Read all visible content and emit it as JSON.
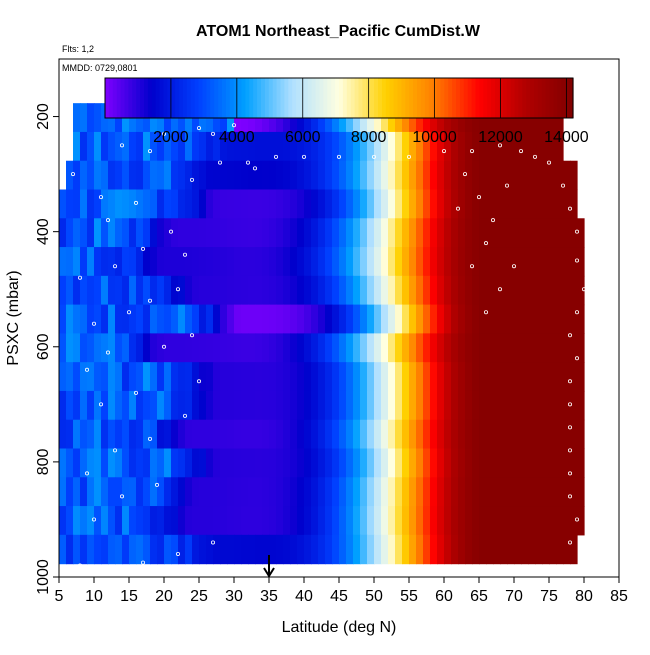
{
  "chart_data": {
    "type": "heatmap",
    "title": "ATOM1 Northeast_Pacific CumDist.W",
    "subtitle_left": "Flts: 1,2",
    "annotation": "MMDD: 0729,0801",
    "xlabel": "Latitude (deg N)",
    "ylabel": "PSXC (mbar)",
    "xlim": [
      5,
      85
    ],
    "ylim": [
      1000,
      100
    ],
    "y_reversed": true,
    "x_ticks": [
      "5",
      "10",
      "15",
      "20",
      "25",
      "30",
      "35",
      "40",
      "45",
      "50",
      "55",
      "60",
      "65",
      "70",
      "75",
      "80",
      "85"
    ],
    "y_ticks": [
      "200",
      "400",
      "600",
      "800",
      "1000"
    ],
    "colorbar": {
      "min": 0,
      "max": 14200,
      "ticks": [
        "2000",
        "4000",
        "6000",
        "8000",
        "10000",
        "12000",
        "14000"
      ],
      "colors": [
        "#7f00ff",
        "#0000cc",
        "#0040ff",
        "#00a0ff",
        "#b0e0ff",
        "#ffffe0",
        "#ffd000",
        "#ff8000",
        "#ff0000",
        "#b00000",
        "#800000"
      ]
    },
    "marker": {
      "latitude": 35,
      "label": "arrow"
    },
    "levels_mbar": [
      200,
      250,
      300,
      350,
      400,
      450,
      500,
      550,
      600,
      650,
      700,
      750,
      800,
      850,
      900,
      950
    ],
    "rows": [
      {
        "p": 200,
        "lat_min": 7,
        "lat_max": 77,
        "cold_lat": 0,
        "cold_val": 0
      },
      {
        "p": 250,
        "lat_min": 7,
        "lat_max": 77,
        "cold_lat": 30,
        "cold_val": 1800
      },
      {
        "p": 300,
        "lat_min": 6,
        "lat_max": 79,
        "cold_lat": 27,
        "cold_val": 1500
      },
      {
        "p": 350,
        "lat_min": 5,
        "lat_max": 79,
        "cold_lat": 28,
        "cold_val": 800
      },
      {
        "p": 400,
        "lat_min": 5,
        "lat_max": 80,
        "cold_lat": 22,
        "cold_val": 900
      },
      {
        "p": 450,
        "lat_min": 5,
        "lat_max": 80,
        "cold_lat": 20,
        "cold_val": 1100
      },
      {
        "p": 500,
        "lat_min": 5,
        "lat_max": 80,
        "cold_lat": 25,
        "cold_val": 1000
      },
      {
        "p": 550,
        "lat_min": 5,
        "lat_max": 80,
        "cold_lat": 31,
        "cold_val": 200
      },
      {
        "p": 600,
        "lat_min": 5,
        "lat_max": 80,
        "cold_lat": 20,
        "cold_val": 900
      },
      {
        "p": 650,
        "lat_min": 5,
        "lat_max": 80,
        "cold_lat": 28,
        "cold_val": 1000
      },
      {
        "p": 700,
        "lat_min": 5,
        "lat_max": 80,
        "cold_lat": 28,
        "cold_val": 1000
      },
      {
        "p": 750,
        "lat_min": 5,
        "lat_max": 80,
        "cold_lat": 24,
        "cold_val": 900
      },
      {
        "p": 800,
        "lat_min": 5,
        "lat_max": 80,
        "cold_lat": 28,
        "cold_val": 1000
      },
      {
        "p": 850,
        "lat_min": 5,
        "lat_max": 80,
        "cold_lat": 25,
        "cold_val": 1000
      },
      {
        "p": 900,
        "lat_min": 5,
        "lat_max": 80,
        "cold_lat": 24,
        "cold_val": 1000
      },
      {
        "p": 950,
        "lat_min": 5,
        "lat_max": 79,
        "cold_lat": 28,
        "cold_val": 1600
      }
    ]
  }
}
